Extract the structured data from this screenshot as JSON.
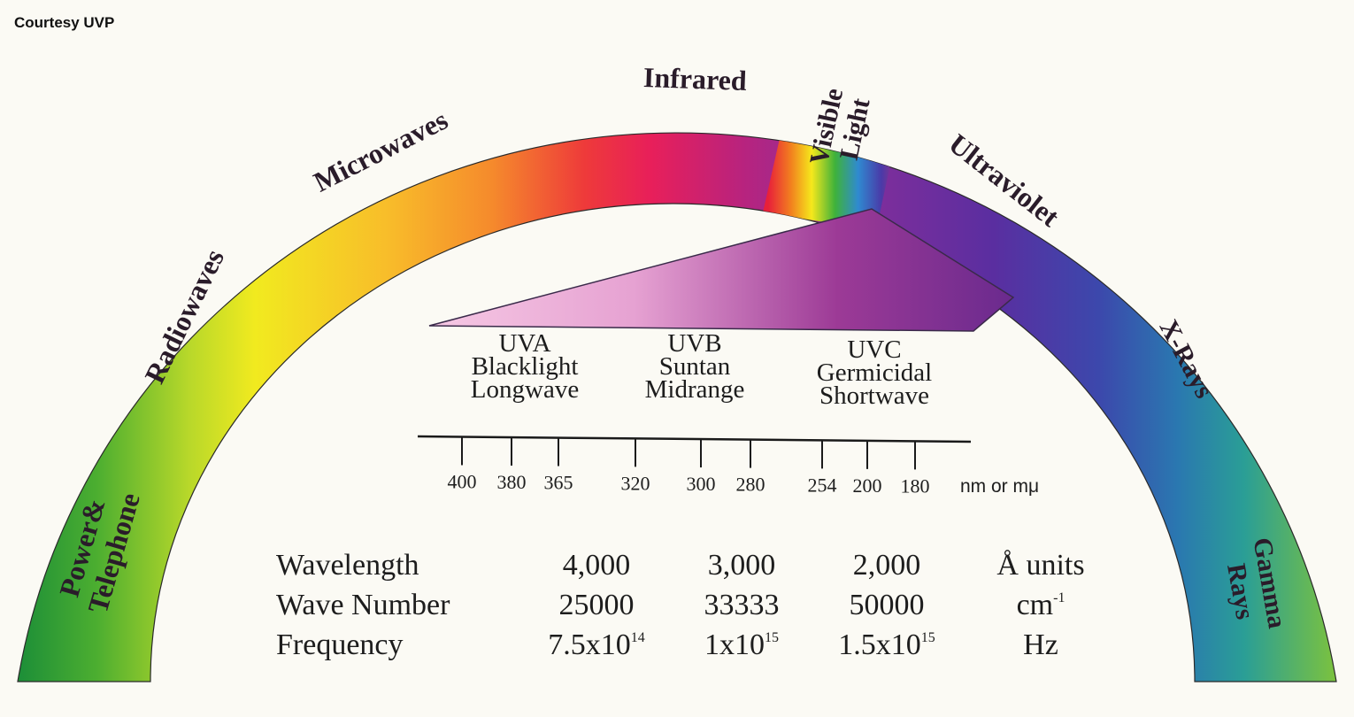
{
  "courtesy": "Courtesy UVP",
  "bands": [
    {
      "lines": [
        "Power",
        "&",
        "Telephone"
      ]
    },
    {
      "lines": [
        "Radiowaves"
      ]
    },
    {
      "lines": [
        "Microwaves"
      ]
    },
    {
      "lines": [
        "Infrared"
      ]
    },
    {
      "lines": [
        "Visible",
        "Light"
      ]
    },
    {
      "lines": [
        "Ultraviolet"
      ]
    },
    {
      "lines": [
        "X-Rays"
      ]
    },
    {
      "lines": [
        "Gamma",
        "Rays"
      ]
    }
  ],
  "uv_bands": [
    {
      "name": "UVA",
      "line2": "Blacklight",
      "line3": "Longwave"
    },
    {
      "name": "UVB",
      "line2": "Suntan",
      "line3": "Midrange"
    },
    {
      "name": "UVC",
      "line2": "Germicidal",
      "line3": "Shortwave"
    }
  ],
  "scale": {
    "ticks": [
      "400",
      "380",
      "365",
      "320",
      "300",
      "280",
      "254",
      "200",
      "180"
    ],
    "unit": "nm or mμ"
  },
  "table": {
    "wavelength": {
      "label": "Wavelength",
      "v1": "4,000",
      "v2": "3,000",
      "v3": "2,000",
      "unit": "Å units"
    },
    "wavenumber": {
      "label": "Wave Number",
      "v1": "25000",
      "v2": "33333",
      "v3": "50000",
      "unit_base": "cm",
      "unit_exp": "-1"
    },
    "frequency": {
      "label": "Frequency",
      "v1_base": "7.5x10",
      "v1_exp": "14",
      "v2_base": "1x10",
      "v2_exp": "15",
      "v3_base": "1.5x10",
      "v3_exp": "15",
      "unit": "Hz"
    }
  },
  "colors": {
    "green": "#1f9a3a",
    "yellow": "#f3ec1d",
    "orange": "#f7a12c",
    "red": "#ec1d4a",
    "magenta": "#a0208c",
    "violet": "#6a2a9c",
    "blue": "#3a4aa8",
    "teal": "#1e8fa6"
  }
}
